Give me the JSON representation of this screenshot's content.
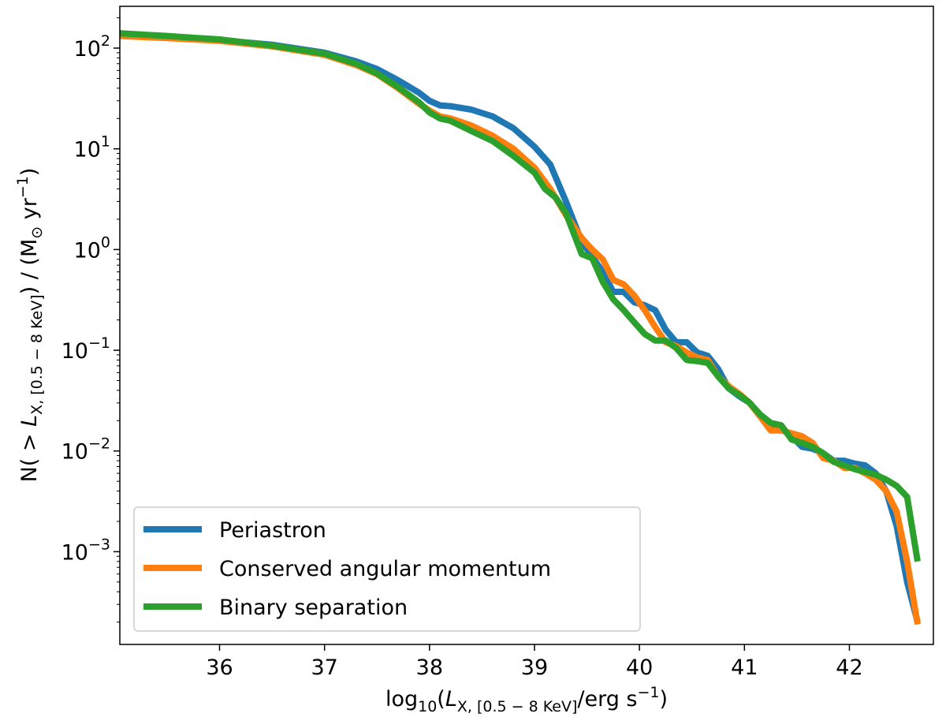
{
  "chart_data": {
    "type": "line",
    "title": "",
    "xlabel": {
      "prefix": "log",
      "prefix_sub": "10",
      "open": "(",
      "var": "L",
      "var_sub": "X, [0.5 − 8 KeV]",
      "unit": "/erg s",
      "unit_sup": "−1",
      "close": ")"
    },
    "ylabel": {
      "prefix": "N( > ",
      "var": "L",
      "var_sub": "X, [0.5 − 8 KeV]",
      "middle": ") / (M",
      "msun_sub": "⊙",
      "unit": " yr",
      "unit_sup": "−1",
      "close": ")"
    },
    "xlim": [
      35.05,
      42.8
    ],
    "ylim": [
      0.00012,
      260
    ],
    "yscale": "log",
    "grid": false,
    "legend_position": "lower-left",
    "xticks": [
      {
        "value": 36,
        "label": "36"
      },
      {
        "value": 37,
        "label": "37"
      },
      {
        "value": 38,
        "label": "38"
      },
      {
        "value": 39,
        "label": "39"
      },
      {
        "value": 40,
        "label": "40"
      },
      {
        "value": 41,
        "label": "41"
      },
      {
        "value": 42,
        "label": "42"
      }
    ],
    "yticks": [
      {
        "value": 0.001,
        "base": "10",
        "exp": "−3"
      },
      {
        "value": 0.01,
        "base": "10",
        "exp": "−2"
      },
      {
        "value": 0.1,
        "base": "10",
        "exp": "−1"
      },
      {
        "value": 1,
        "base": "10",
        "exp": "0"
      },
      {
        "value": 10,
        "base": "10",
        "exp": "1"
      },
      {
        "value": 100,
        "base": "10",
        "exp": "2"
      }
    ],
    "series": [
      {
        "name": "Periastron",
        "color": "#1f77b4",
        "x": [
          35.05,
          35.5,
          36.0,
          36.5,
          37.0,
          37.3,
          37.5,
          37.7,
          37.9,
          38.0,
          38.1,
          38.2,
          38.4,
          38.6,
          38.8,
          39.0,
          39.15,
          39.3,
          39.45,
          39.55,
          39.65,
          39.75,
          39.85,
          39.95,
          40.05,
          40.15,
          40.25,
          40.35,
          40.45,
          40.55,
          40.65,
          40.75,
          40.85,
          40.95,
          41.05,
          41.15,
          41.25,
          41.35,
          41.45,
          41.55,
          41.65,
          41.75,
          41.85,
          41.95,
          42.05,
          42.15,
          42.25,
          42.35,
          42.45,
          42.55,
          42.65
        ],
        "y": [
          140,
          130,
          120,
          108,
          90,
          74,
          62,
          48,
          36,
          30,
          27,
          26.5,
          24.5,
          21,
          16,
          10.5,
          7,
          3,
          1.2,
          0.85,
          0.6,
          0.38,
          0.38,
          0.3,
          0.28,
          0.25,
          0.16,
          0.12,
          0.12,
          0.095,
          0.088,
          0.065,
          0.042,
          0.035,
          0.03,
          0.022,
          0.017,
          0.017,
          0.014,
          0.011,
          0.0105,
          0.0095,
          0.008,
          0.008,
          0.0075,
          0.0072,
          0.006,
          0.004,
          0.0018,
          0.0005,
          0.0002
        ]
      },
      {
        "name": "Conserved angular momentum",
        "color": "#ff7f0e",
        "x": [
          35.05,
          35.5,
          36.0,
          36.5,
          37.0,
          37.3,
          37.5,
          37.7,
          37.9,
          38.0,
          38.1,
          38.2,
          38.4,
          38.6,
          38.8,
          39.0,
          39.15,
          39.3,
          39.45,
          39.55,
          39.65,
          39.75,
          39.85,
          39.95,
          40.05,
          40.15,
          40.25,
          40.35,
          40.45,
          40.55,
          40.65,
          40.75,
          40.85,
          40.95,
          41.05,
          41.15,
          41.25,
          41.35,
          41.45,
          41.55,
          41.65,
          41.75,
          41.85,
          41.95,
          42.05,
          42.15,
          42.25,
          42.35,
          42.45,
          42.55,
          42.65
        ],
        "y": [
          132,
          126,
          118,
          104,
          86,
          68,
          55,
          40,
          28,
          24,
          21,
          20,
          17,
          13.5,
          10,
          6.5,
          4,
          2.2,
          1.3,
          1.0,
          0.8,
          0.5,
          0.45,
          0.35,
          0.25,
          0.17,
          0.12,
          0.11,
          0.095,
          0.085,
          0.08,
          0.055,
          0.044,
          0.037,
          0.03,
          0.022,
          0.016,
          0.016,
          0.015,
          0.014,
          0.012,
          0.0085,
          0.008,
          0.0068,
          0.0068,
          0.006,
          0.0052,
          0.004,
          0.0025,
          0.0008,
          0.00019
        ]
      },
      {
        "name": "Binary separation",
        "color": "#2ca02c",
        "x": [
          35.05,
          35.5,
          36.0,
          36.5,
          37.0,
          37.3,
          37.5,
          37.7,
          37.9,
          38.0,
          38.1,
          38.2,
          38.4,
          38.6,
          38.8,
          39.0,
          39.1,
          39.2,
          39.3,
          39.45,
          39.55,
          39.65,
          39.75,
          39.85,
          39.95,
          40.05,
          40.15,
          40.25,
          40.35,
          40.45,
          40.55,
          40.65,
          40.75,
          40.85,
          40.95,
          41.05,
          41.15,
          41.25,
          41.35,
          41.45,
          41.55,
          41.65,
          41.75,
          41.85,
          41.95,
          42.05,
          42.15,
          42.25,
          42.35,
          42.45,
          42.55,
          42.65
        ],
        "y": [
          140,
          132,
          122,
          106,
          88,
          70,
          56,
          41,
          29,
          23,
          20,
          19,
          15,
          12,
          8.5,
          5.8,
          4,
          3.3,
          2.3,
          0.9,
          0.82,
          0.48,
          0.32,
          0.25,
          0.19,
          0.145,
          0.125,
          0.125,
          0.105,
          0.08,
          0.078,
          0.075,
          0.055,
          0.042,
          0.036,
          0.03,
          0.023,
          0.019,
          0.018,
          0.013,
          0.012,
          0.011,
          0.0095,
          0.0078,
          0.0072,
          0.0066,
          0.0062,
          0.0058,
          0.0052,
          0.0045,
          0.0035,
          0.0008
        ]
      }
    ]
  }
}
